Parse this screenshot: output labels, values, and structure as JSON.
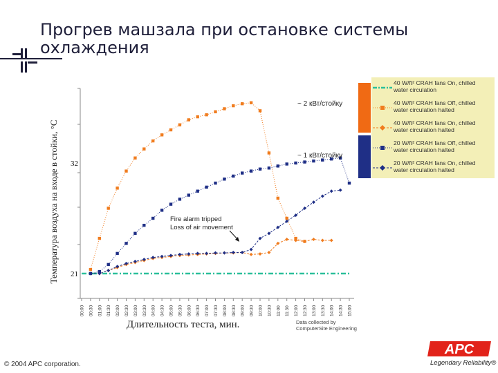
{
  "page": {
    "title": "Прогрев машзала при остановке системы охлаждения",
    "copyright": "© 2004 APC corporation.",
    "brand": "APC",
    "brand_tagline": "Legendary Reliability®",
    "data_note": "Data collected by ComputerSite Engineering"
  },
  "colors": {
    "orange": "#f07c1e",
    "navy": "#1f2f86",
    "teal": "#2bbf9a",
    "legend_bg": "#f3efb7",
    "apc_red": "#e2231a"
  },
  "chart_data": {
    "type": "line",
    "xlabel": "Длительность теста, мин.",
    "ylabel": "Температура воздуха на входе в стойки, °С",
    "y_tick_labels": [
      "21",
      "32"
    ],
    "categories": [
      "00:00",
      "00:30",
      "01:00",
      "01:30",
      "02:00",
      "02:30",
      "03:00",
      "03:30",
      "04:00",
      "04:30",
      "05:00",
      "05:30",
      "06:00",
      "06:30",
      "07:00",
      "07:30",
      "08:00",
      "08:30",
      "09:00",
      "09:30",
      "10:00",
      "10:30",
      "11:00",
      "11:30",
      "12:00",
      "12:30",
      "13:00",
      "13:30",
      "14:00",
      "14:30",
      "15:00"
    ],
    "annotations": {
      "power_high": "~ 2 кВт/стойку",
      "power_low": "~ 1 кВт/стойку",
      "event_line1": "Fire alarm tripped",
      "event_line2": "Loss of air movement"
    },
    "series": [
      {
        "name": "40 W/ft² CRAH fans On, chilled water circulation",
        "color": "#2bbf9a",
        "style": "dashdot",
        "values": [
          21,
          21,
          21,
          21,
          21,
          21,
          21,
          21,
          21,
          21,
          21,
          21,
          21,
          21,
          21,
          21,
          21,
          21,
          21,
          21,
          21,
          21,
          21,
          21,
          21,
          21,
          21,
          21,
          21,
          21,
          21
        ]
      },
      {
        "name": "40 W/ft² CRAH fans Off, chilled water circulation halted",
        "color": "#f07c1e",
        "style": "dotted-square",
        "values": [
          null,
          21.4,
          24.5,
          27.5,
          29.5,
          31.2,
          32.5,
          33.4,
          34.2,
          34.8,
          35.3,
          35.8,
          36.3,
          36.6,
          36.8,
          37.1,
          37.4,
          37.7,
          37.9,
          38.0,
          37.2,
          33.0,
          28.5,
          26.5,
          24.5,
          24.2,
          null,
          null,
          null,
          null,
          null
        ]
      },
      {
        "name": "40 W/ft² CRAH fans On, chilled water circulation halted",
        "color": "#f07c1e",
        "style": "dashed-diamond",
        "values": [
          null,
          21.0,
          21.0,
          21.3,
          21.6,
          21.9,
          22.1,
          22.3,
          22.5,
          22.6,
          22.7,
          22.8,
          22.85,
          22.9,
          22.95,
          23.0,
          23.05,
          23.05,
          23.1,
          22.9,
          22.95,
          23.1,
          24.0,
          24.4,
          24.3,
          24.2,
          24.4,
          24.3,
          24.3,
          null,
          null
        ]
      },
      {
        "name": "20 W/ft² CRAH fans Off, chilled water circulation halted",
        "color": "#1f2f86",
        "style": "dotted-square",
        "values": [
          null,
          21.0,
          21.2,
          21.9,
          23.0,
          24.0,
          25.0,
          25.8,
          26.5,
          27.3,
          27.9,
          28.4,
          28.8,
          29.2,
          29.6,
          30.0,
          30.4,
          30.7,
          31.0,
          31.2,
          31.4,
          31.5,
          31.7,
          31.9,
          32.0,
          32.1,
          32.2,
          32.3,
          32.4,
          32.5,
          30.0
        ]
      },
      {
        "name": "20 W/ft² CRAH fans On, chilled water circulation halted",
        "color": "#1f2f86",
        "style": "dashed-diamond",
        "values": [
          null,
          21.0,
          21.0,
          21.3,
          21.7,
          22.0,
          22.2,
          22.4,
          22.6,
          22.7,
          22.8,
          22.9,
          22.95,
          23.0,
          23.0,
          23.05,
          23.05,
          23.1,
          23.1,
          23.4,
          24.5,
          25.0,
          25.6,
          26.2,
          26.8,
          27.5,
          28.1,
          28.7,
          29.2,
          29.3,
          null
        ]
      }
    ]
  }
}
